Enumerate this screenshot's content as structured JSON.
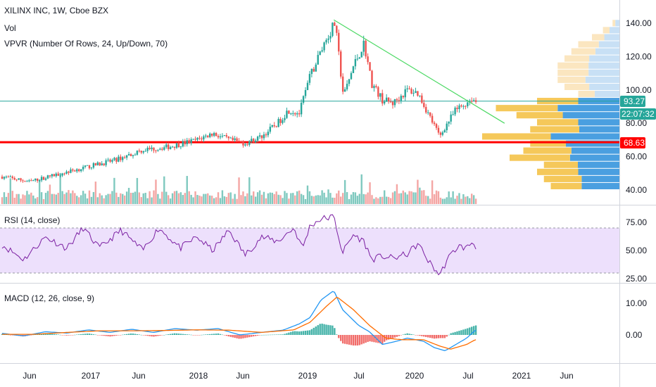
{
  "header": {
    "symbol_line": "XILINX INC, 1W, Cboe BZX",
    "vol_label": "Vol",
    "vpvr_label": "VPVR (Number Of Rows, 24, Up/Down, 70)"
  },
  "colors": {
    "up": "#26a69a",
    "down": "#ef5350",
    "vol_up": "#7fc9bf",
    "vol_down": "#f4a6a4",
    "trendline": "#4cd964",
    "support": "#ff0000",
    "last_price_line": "#26a69a",
    "vpvr_up_strong": "#4a9fe0",
    "vpvr_down_strong": "#f5c85a",
    "vpvr_up_light": "#c8e0f5",
    "vpvr_down_light": "#fbe6c0",
    "rsi_line": "#7b1fa2",
    "rsi_band": "#ede0fc",
    "macd_line": "#2196f3",
    "signal_line": "#ff6d00"
  },
  "price_tags": {
    "last_price": "93.27",
    "countdown": "22:07:32",
    "support": "68.63"
  },
  "chart_data": [
    {
      "type": "candlestick",
      "name": "XILINX INC weekly price",
      "ylim": [
        30,
        145
      ],
      "y_ticks": [
        "140.00",
        "120.00",
        "100.00",
        "80.00",
        "60.00",
        "40.00"
      ],
      "x_ticks": [
        "Jun",
        "2017",
        "Jun",
        "2018",
        "Jun",
        "2019",
        "Jul",
        "2020",
        "Jul",
        "2021",
        "Jun"
      ],
      "price_path": [
        [
          2016.2,
          48
        ],
        [
          2016.45,
          45
        ],
        [
          2016.75,
          50
        ],
        [
          2017.0,
          54
        ],
        [
          2017.25,
          58
        ],
        [
          2017.5,
          64
        ],
        [
          2017.75,
          66
        ],
        [
          2018.0,
          70
        ],
        [
          2018.15,
          74
        ],
        [
          2018.3,
          70
        ],
        [
          2018.45,
          68
        ],
        [
          2018.6,
          72
        ],
        [
          2018.75,
          80
        ],
        [
          2018.85,
          88
        ],
        [
          2018.95,
          86
        ],
        [
          2019.05,
          108
        ],
        [
          2019.18,
          128
        ],
        [
          2019.28,
          140
        ],
        [
          2019.36,
          96
        ],
        [
          2019.45,
          114
        ],
        [
          2019.55,
          128
        ],
        [
          2019.62,
          104
        ],
        [
          2019.72,
          94
        ],
        [
          2019.82,
          92
        ],
        [
          2019.95,
          100
        ],
        [
          2020.05,
          98
        ],
        [
          2020.15,
          85
        ],
        [
          2020.25,
          72
        ],
        [
          2020.3,
          78
        ],
        [
          2020.4,
          88
        ],
        [
          2020.47,
          91
        ],
        [
          2020.55,
          95
        ],
        [
          2020.58,
          93
        ]
      ],
      "last_price": 93.27,
      "support_level": 68.63,
      "trendline": [
        [
          2019.27,
          142
        ],
        [
          2020.85,
          80
        ]
      ]
    },
    {
      "type": "bar",
      "name": "Vol",
      "note": "weekly volume bars, relative scale only (no axis printed)"
    },
    {
      "type": "bar",
      "name": "VPVR (Number Of Rows, 24, Up/Down, 70)",
      "orientation": "horizontal",
      "rows": 24,
      "price_range": [
        40,
        142
      ],
      "up_share": [
        0.55,
        0.5,
        0.5,
        0.55,
        0.45,
        0.5,
        0.6,
        0.5,
        0.45,
        0.5,
        0.55,
        0.5,
        0.5,
        0.6,
        0.55,
        0.55,
        0.5,
        0.5,
        0.55,
        0.5,
        0.5,
        0.55,
        0.6,
        0.6
      ],
      "relative_volume": [
        0.5,
        0.55,
        0.6,
        0.55,
        0.8,
        0.7,
        0.65,
        1.0,
        0.65,
        0.6,
        0.75,
        0.9,
        0.6,
        0.3,
        0.4,
        0.45,
        0.45,
        0.45,
        0.4,
        0.35,
        0.3,
        0.2,
        0.12,
        0.05
      ]
    },
    {
      "type": "line",
      "name": "RSI (14, close)",
      "ylim": [
        22,
        82
      ],
      "y_ticks": [
        "75.00",
        "50.00",
        "25.00"
      ],
      "band": [
        30,
        70
      ],
      "path": [
        [
          2016.2,
          55
        ],
        [
          2016.4,
          42
        ],
        [
          2016.6,
          62
        ],
        [
          2016.8,
          52
        ],
        [
          2016.95,
          70
        ],
        [
          2017.1,
          52
        ],
        [
          2017.3,
          68
        ],
        [
          2017.5,
          50
        ],
        [
          2017.65,
          70
        ],
        [
          2017.85,
          52
        ],
        [
          2018.0,
          62
        ],
        [
          2018.15,
          50
        ],
        [
          2018.3,
          68
        ],
        [
          2018.45,
          46
        ],
        [
          2018.6,
          62
        ],
        [
          2018.75,
          58
        ],
        [
          2018.9,
          70
        ],
        [
          2018.98,
          52
        ],
        [
          2019.05,
          72
        ],
        [
          2019.15,
          78
        ],
        [
          2019.27,
          80
        ],
        [
          2019.35,
          48
        ],
        [
          2019.45,
          64
        ],
        [
          2019.55,
          58
        ],
        [
          2019.62,
          42
        ],
        [
          2019.72,
          45
        ],
        [
          2019.82,
          43
        ],
        [
          2019.95,
          47
        ],
        [
          2020.05,
          56
        ],
        [
          2020.15,
          40
        ],
        [
          2020.25,
          28
        ],
        [
          2020.32,
          42
        ],
        [
          2020.42,
          54
        ],
        [
          2020.5,
          52
        ],
        [
          2020.55,
          58
        ],
        [
          2020.58,
          53
        ]
      ]
    },
    {
      "type": "line",
      "name": "MACD (12, 26, close, 9)",
      "ylim": [
        -6,
        16
      ],
      "y_ticks": [
        "10.00",
        "0.00"
      ],
      "macd": [
        [
          2016.2,
          0.5
        ],
        [
          2016.4,
          -0.3
        ],
        [
          2016.6,
          1.0
        ],
        [
          2016.8,
          0.6
        ],
        [
          2017.0,
          1.6
        ],
        [
          2017.2,
          0.8
        ],
        [
          2017.4,
          1.8
        ],
        [
          2017.6,
          0.8
        ],
        [
          2017.8,
          2.0
        ],
        [
          2018.0,
          1.5
        ],
        [
          2018.2,
          2.0
        ],
        [
          2018.4,
          0.0
        ],
        [
          2018.6,
          0.8
        ],
        [
          2018.8,
          1.5
        ],
        [
          2018.95,
          3.5
        ],
        [
          2019.05,
          5.5
        ],
        [
          2019.15,
          11
        ],
        [
          2019.27,
          14
        ],
        [
          2019.35,
          8
        ],
        [
          2019.5,
          3
        ],
        [
          2019.6,
          1
        ],
        [
          2019.72,
          -3
        ],
        [
          2019.85,
          -2
        ],
        [
          2019.95,
          -1
        ],
        [
          2020.1,
          -2
        ],
        [
          2020.2,
          -4
        ],
        [
          2020.3,
          -5
        ],
        [
          2020.4,
          -3
        ],
        [
          2020.5,
          -1
        ],
        [
          2020.58,
          1.5
        ]
      ],
      "signal": [
        [
          2016.2,
          0.2
        ],
        [
          2016.5,
          0.2
        ],
        [
          2016.8,
          0.8
        ],
        [
          2017.1,
          1.3
        ],
        [
          2017.4,
          1.3
        ],
        [
          2017.7,
          1.4
        ],
        [
          2018.0,
          1.6
        ],
        [
          2018.3,
          1.5
        ],
        [
          2018.6,
          0.8
        ],
        [
          2018.9,
          1.6
        ],
        [
          2019.05,
          4.0
        ],
        [
          2019.2,
          9.0
        ],
        [
          2019.3,
          12
        ],
        [
          2019.45,
          8
        ],
        [
          2019.6,
          3
        ],
        [
          2019.75,
          -1
        ],
        [
          2019.9,
          -1.5
        ],
        [
          2020.1,
          -1.5
        ],
        [
          2020.25,
          -3.5
        ],
        [
          2020.35,
          -4.5
        ],
        [
          2020.5,
          -3
        ],
        [
          2020.58,
          -1.5
        ]
      ]
    }
  ]
}
